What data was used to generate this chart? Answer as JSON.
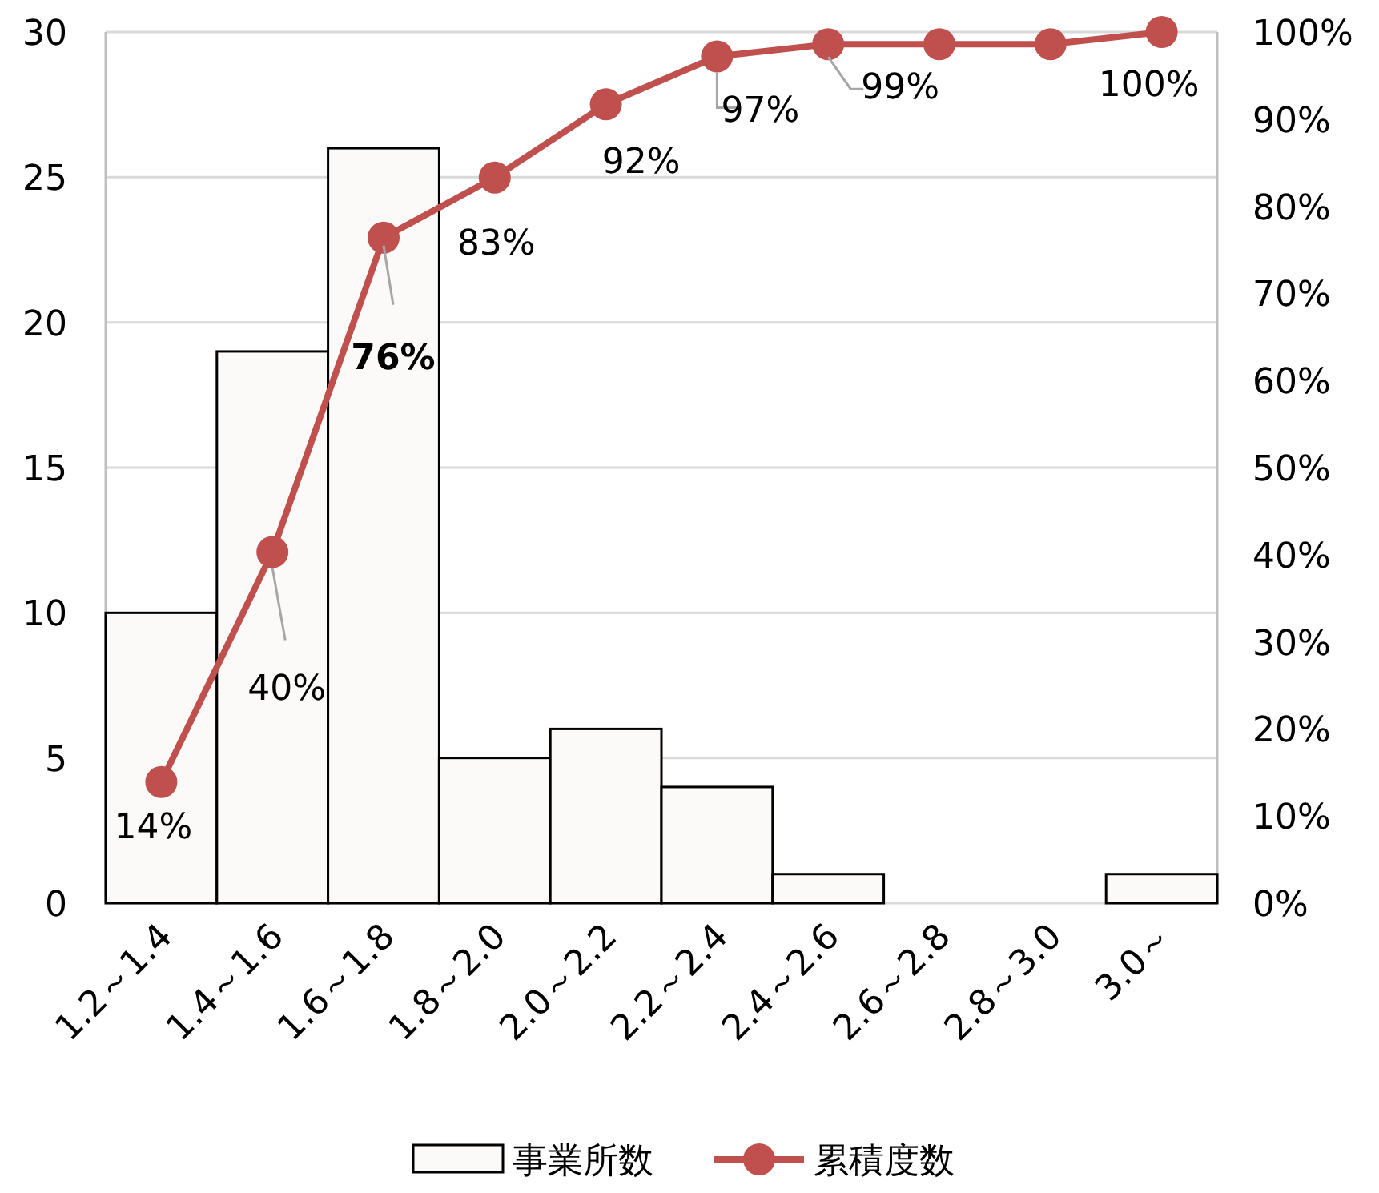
{
  "chart_data": {
    "type": "bar",
    "categories": [
      "1.2～1.4",
      "1.4～1.6",
      "1.6～1.8",
      "1.8～2.0",
      "2.0～2.2",
      "2.2～2.4",
      "2.4～2.6",
      "2.6～2.8",
      "2.8～3.0",
      "3.0～"
    ],
    "series": [
      {
        "name": "事業所数",
        "color": "#fbfaf8",
        "values": [
          10,
          19,
          26,
          5,
          6,
          4,
          1,
          0,
          0,
          1
        ]
      },
      {
        "name": "累積度数",
        "type": "line",
        "axis": "y2",
        "color": "#c0504d",
        "marker": "circle",
        "values": [
          13.9,
          40.3,
          76.4,
          83.3,
          91.7,
          97.2,
          98.6,
          98.6,
          98.6,
          100
        ],
        "value_labels": [
          "14%",
          "40%",
          "76%",
          "83%",
          "92%",
          "97%",
          "99%",
          null,
          null,
          "100%"
        ]
      }
    ],
    "ylim": [
      0,
      30
    ],
    "yticks": [
      0,
      5,
      10,
      15,
      20,
      25,
      30
    ],
    "y2lim": [
      0,
      100
    ],
    "y2ticks": [
      {
        "value": 0,
        "label": "0%"
      },
      {
        "value": 10,
        "label": "10%"
      },
      {
        "value": 20,
        "label": "20%"
      },
      {
        "value": 30,
        "label": "30%"
      },
      {
        "value": 40,
        "label": "40%"
      },
      {
        "value": 50,
        "label": "50%"
      },
      {
        "value": 60,
        "label": "60%"
      },
      {
        "value": 70,
        "label": "70%"
      },
      {
        "value": 80,
        "label": "80%"
      },
      {
        "value": 90,
        "label": "90%"
      },
      {
        "value": 100,
        "label": "100%"
      }
    ],
    "grid": "y",
    "legend": "bottom"
  }
}
